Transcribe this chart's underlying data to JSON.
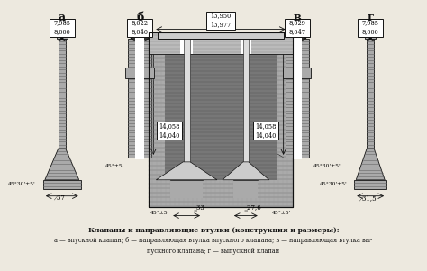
{
  "title": "Клапаны и направляющие втулки (конструкция и размеры):",
  "caption_line2": "а — впускной клапан; б — направляющая втулка впускного клапана; в — направляющая втулка вы-",
  "caption_line3": "пускного клапана; г — выпускной клапан",
  "dim_a_top": [
    "7,985",
    "8,000"
  ],
  "dim_b_top": [
    "8,022",
    "8,040"
  ],
  "dim_center_top": [
    "13,950",
    "13,977"
  ],
  "dim_v_top": [
    "8,029",
    "8,047"
  ],
  "dim_g_top": [
    "7,985",
    "8,000"
  ],
  "dim_b_bot": [
    "14,058",
    "14,040"
  ],
  "dim_v_bot": [
    "14,058",
    "14,040"
  ],
  "dim_center_left": "̳33",
  "dim_center_right": "̳27,6",
  "angle_a": "45°30'±5'",
  "angle_bl": "45°±5'",
  "angle_br": "45°±5'",
  "angle_v": "45°30'±5'",
  "diam_a": "̷37",
  "diam_g": "̷31,5",
  "bg_color": "#ede9df",
  "box_color": "#ffffff",
  "lc": "#111111",
  "hatch_color": "#777777",
  "gray_body": "#aaaaaa",
  "gray_dark": "#666666",
  "gray_engine": "#999999",
  "gray_engine_dark": "#555555",
  "gray_bore": "#888888",
  "white": "#ffffff"
}
